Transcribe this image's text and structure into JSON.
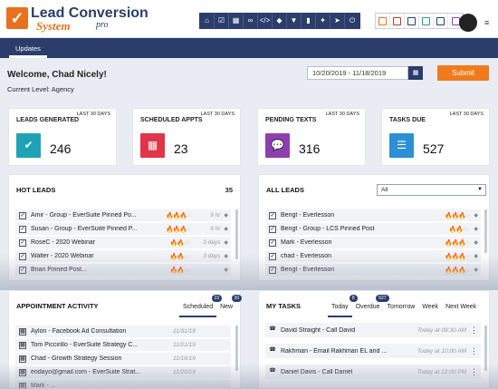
{
  "brand": {
    "line1": "Lead Conversion",
    "line2": "System",
    "line3": "pro"
  },
  "toolbar_icons": [
    "home-icon",
    "checkbox-icon",
    "calendar-icon",
    "link-icon",
    "code-icon",
    "tag-icon",
    "filter-icon",
    "chart-icon",
    "megaphone-icon",
    "send-icon",
    "power-icon"
  ],
  "toolbar_glyphs": [
    "⌂",
    "☑",
    "▦",
    "∞",
    "</>",
    "◆",
    "▼",
    "▮",
    "✦",
    "➤",
    "⏻"
  ],
  "status_colors": [
    "#e8711e",
    "#c0392b",
    "#2b3d6b",
    "#2e9e6b",
    "#2b3d6b",
    "#8e44ad"
  ],
  "nav": {
    "updates": "Updates"
  },
  "welcome": "Welcome, Chad Nicely!",
  "level": "Current Level: Agency",
  "date_range": "10/20/2019 - 11/18/2019",
  "submit_label": "Submit",
  "stats": [
    {
      "title": "LEADS GENERATED",
      "sub": "LAST 30 DAYS",
      "value": "246",
      "color": "#1fa3b4",
      "icon": "check-icon",
      "glyph": "✔"
    },
    {
      "title": "SCHEDULED APPTS",
      "sub": "LAST 30 DAYS",
      "value": "23",
      "color": "#e0354a",
      "icon": "calendar-icon",
      "glyph": "▦"
    },
    {
      "title": "PENDING TEXTS",
      "sub": "LAST 30 DAYS",
      "value": "316",
      "color": "#8e3fae",
      "icon": "chat-icon",
      "glyph": "💬"
    },
    {
      "title": "TASKS DUE",
      "sub": "LAST 30 DAYS",
      "value": "527",
      "color": "#2d8fd6",
      "icon": "list-icon",
      "glyph": "☰"
    }
  ],
  "hot_leads": {
    "title": "HOT LEADS",
    "count": "35",
    "rows": [
      {
        "name": "Amir - Group - EverSuite Pinned Po...",
        "flames": 3,
        "time": "9 hr"
      },
      {
        "name": "Susan - Group - EverSuite Pinned P...",
        "flames": 3,
        "time": "9 hr"
      },
      {
        "name": "RoseC - 2020 Webinar",
        "flames": 2,
        "time": "3 days"
      },
      {
        "name": "Walter - 2020 Webinar",
        "flames": 2,
        "time": "3 days"
      },
      {
        "name": "Brian Pinned Post...",
        "flames": 2,
        "time": ""
      }
    ]
  },
  "all_leads": {
    "title": "ALL LEADS",
    "filter": "All",
    "rows": [
      {
        "name": "Bengt - Everlesson",
        "flames": 3
      },
      {
        "name": "Bengt - Group - LCS Pinned Post",
        "flames": 2
      },
      {
        "name": "Mark - Everlesson",
        "flames": 3
      },
      {
        "name": "chad - Everlesson",
        "flames": 3
      },
      {
        "name": "Bengt - Everlesson",
        "flames": 3
      }
    ]
  },
  "appointments": {
    "title": "APPOINTMENT ACTIVITY",
    "tabs": [
      {
        "label": "Scheduled",
        "badge": "23"
      },
      {
        "label": "New",
        "badge": "30"
      }
    ],
    "rows": [
      {
        "name": "Aylon - Facebook Ad Consultation",
        "date": "11/31/19"
      },
      {
        "name": "Tom Piccirillo - EverSuite Strategy C...",
        "date": "11/21/19"
      },
      {
        "name": "Chad - Growth Strategy Session",
        "date": "11/16/19"
      },
      {
        "name": "eodayo@gmail.com - EverSuite Strat...",
        "date": "11/20/19"
      },
      {
        "name": "Mark - ...",
        "date": ""
      }
    ]
  },
  "tasks": {
    "title": "MY TASKS",
    "tabs": [
      {
        "label": "Today",
        "badge": "8"
      },
      {
        "label": "Overdue",
        "badge": "527"
      },
      {
        "label": "Tomorrow",
        "badge": ""
      },
      {
        "label": "Week",
        "badge": ""
      },
      {
        "label": "Next Week",
        "badge": ""
      }
    ],
    "rows": [
      {
        "name": "David Straight - Call David",
        "time": "Today at 09:30 AM"
      },
      {
        "name": "Rakhman - Email Rakhman EL and ...",
        "time": "Today at 10:00 AM"
      },
      {
        "name": "Daniel Davis - Call Daniel",
        "time": "Today at 12:00 PM"
      }
    ]
  }
}
